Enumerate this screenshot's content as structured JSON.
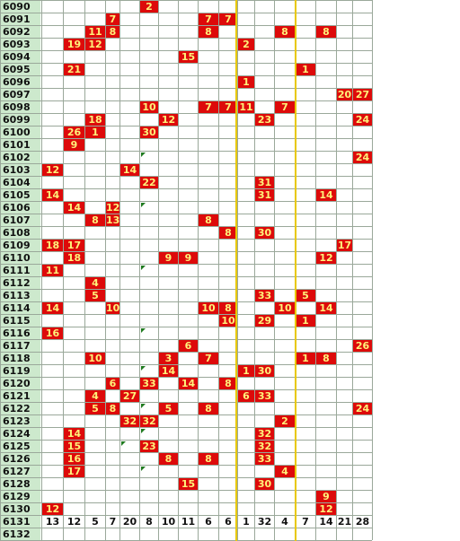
{
  "columns": [
    "13",
    "12",
    "5",
    "7",
    "20",
    "8",
    "10",
    "11",
    "6",
    "6",
    "1",
    "32",
    "4",
    "7",
    "14",
    "21",
    "28"
  ],
  "last_row": "6132",
  "rows": [
    {
      "id": "6090",
      "cells": {
        "5": "2"
      }
    },
    {
      "id": "6091",
      "cells": {
        "3": "7",
        "8": "7",
        "9": "7"
      }
    },
    {
      "id": "6092",
      "cells": {
        "2": "11",
        "3": "8",
        "8": "8",
        "12": "8",
        "14": "8"
      }
    },
    {
      "id": "6093",
      "cells": {
        "1": "19",
        "2": "12",
        "10": "2"
      }
    },
    {
      "id": "6094",
      "cells": {
        "7": "15"
      }
    },
    {
      "id": "6095",
      "cells": {
        "1": "21",
        "13": "1"
      }
    },
    {
      "id": "6096",
      "cells": {
        "10": "1"
      }
    },
    {
      "id": "6097",
      "cells": {
        "15": "20",
        "16": "27"
      }
    },
    {
      "id": "6098",
      "cells": {
        "5": "10",
        "8": "7",
        "9": "7",
        "10": "11",
        "12": "7"
      }
    },
    {
      "id": "6099",
      "cells": {
        "2": "18",
        "6": "12",
        "11": "23",
        "16": "24"
      }
    },
    {
      "id": "6100",
      "cells": {
        "1": "26",
        "2": "1",
        "5": "30"
      }
    },
    {
      "id": "6101",
      "cells": {
        "1": "9"
      }
    },
    {
      "id": "6102",
      "cells": {
        "16": "24"
      },
      "ticks": [
        5
      ]
    },
    {
      "id": "6103",
      "cells": {
        "0": "12",
        "4": "14"
      }
    },
    {
      "id": "6104",
      "cells": {
        "5": "22",
        "11": "31"
      }
    },
    {
      "id": "6105",
      "cells": {
        "0": "14",
        "11": "31",
        "14": "14"
      }
    },
    {
      "id": "6106",
      "cells": {
        "1": "14",
        "3": "12"
      },
      "ticks": [
        5
      ]
    },
    {
      "id": "6107",
      "cells": {
        "2": "8",
        "3": "13",
        "8": "8"
      }
    },
    {
      "id": "6108",
      "cells": {
        "9": "8",
        "11": "30"
      }
    },
    {
      "id": "6109",
      "cells": {
        "0": "18",
        "1": "17",
        "15": "17"
      }
    },
    {
      "id": "6110",
      "cells": {
        "1": "18",
        "6": "9",
        "7": "9",
        "14": "12"
      }
    },
    {
      "id": "6111",
      "cells": {
        "0": "11"
      },
      "ticks": [
        5
      ]
    },
    {
      "id": "6112",
      "cells": {
        "2": "4"
      }
    },
    {
      "id": "6113",
      "cells": {
        "2": "5",
        "11": "33",
        "13": "5"
      }
    },
    {
      "id": "6114",
      "cells": {
        "0": "14",
        "3": "10",
        "8": "10",
        "9": "8",
        "12": "10",
        "14": "14"
      }
    },
    {
      "id": "6115",
      "cells": {
        "9": "10",
        "11": "29",
        "13": "1"
      }
    },
    {
      "id": "6116",
      "cells": {
        "0": "16"
      },
      "ticks": [
        5
      ]
    },
    {
      "id": "6117",
      "cells": {
        "7": "6",
        "16": "26"
      }
    },
    {
      "id": "6118",
      "cells": {
        "2": "10",
        "6": "3",
        "8": "7",
        "13": "1",
        "14": "8"
      }
    },
    {
      "id": "6119",
      "cells": {
        "6": "14",
        "10": "1",
        "11": "30"
      },
      "ticks": [
        5
      ]
    },
    {
      "id": "6120",
      "cells": {
        "3": "6",
        "5": "33",
        "7": "14",
        "9": "8"
      }
    },
    {
      "id": "6121",
      "cells": {
        "2": "4",
        "4": "27",
        "10": "6",
        "11": "33"
      }
    },
    {
      "id": "6122",
      "cells": {
        "2": "5",
        "3": "8",
        "6": "5",
        "8": "8",
        "16": "24"
      },
      "ticks": [
        5
      ]
    },
    {
      "id": "6123",
      "cells": {
        "4": "32",
        "5": "32",
        "12": "2"
      }
    },
    {
      "id": "6124",
      "cells": {
        "1": "14",
        "11": "32"
      },
      "ticks": [
        5
      ]
    },
    {
      "id": "6125",
      "cells": {
        "1": "15",
        "5": "23",
        "11": "32"
      },
      "ticks": [
        4
      ]
    },
    {
      "id": "6126",
      "cells": {
        "1": "16",
        "6": "8",
        "8": "8",
        "11": "33"
      }
    },
    {
      "id": "6127",
      "cells": {
        "1": "17",
        "12": "4"
      },
      "ticks": [
        5
      ]
    },
    {
      "id": "6128",
      "cells": {
        "7": "15",
        "11": "30"
      }
    },
    {
      "id": "6129",
      "cells": {
        "14": "9"
      }
    },
    {
      "id": "6130",
      "cells": {
        "0": "12",
        "14": "12"
      }
    }
  ],
  "footer_row_id": "6131"
}
